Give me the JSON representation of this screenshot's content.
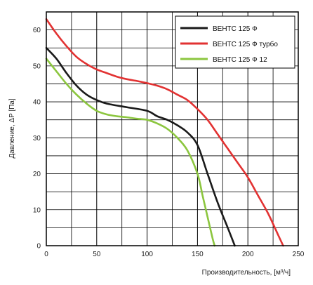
{
  "chart_data": {
    "type": "line",
    "xlabel": "Производительность, [м³/ч]",
    "ylabel": "Давление, ΔP [Па]",
    "xlim": [
      0,
      250
    ],
    "ylim": [
      0,
      65
    ],
    "x_ticks": [
      "0",
      "50",
      "100",
      "150",
      "200",
      "250"
    ],
    "y_ticks": [
      "0",
      "10",
      "20",
      "30",
      "40",
      "50",
      "60"
    ],
    "grid": true,
    "legend_position": "top-right",
    "series": [
      {
        "name": "ВЕНТС 125 Ф",
        "color": "#1a1a1a",
        "x": [
          0,
          10,
          20,
          30,
          40,
          50,
          60,
          80,
          100,
          110,
          120,
          130,
          140,
          150,
          160,
          170,
          180,
          187
        ],
        "y": [
          55,
          52,
          48,
          44.5,
          42,
          40.5,
          39.5,
          38.5,
          37.5,
          36,
          35,
          33.5,
          31.5,
          28,
          20,
          12,
          5,
          0
        ]
      },
      {
        "name": "ВЕНТС 125 Ф турбо",
        "color": "#e23232",
        "x": [
          0,
          10,
          20,
          30,
          40,
          50,
          60,
          70,
          80,
          90,
          100,
          110,
          120,
          130,
          140,
          150,
          160,
          170,
          180,
          190,
          200,
          210,
          220,
          230,
          235
        ],
        "y": [
          63,
          59,
          55.5,
          52.5,
          50.5,
          49,
          48,
          47,
          46.3,
          45.8,
          45.2,
          44.5,
          43.5,
          42,
          40.5,
          38,
          35,
          31,
          27,
          23,
          19,
          14,
          9,
          3,
          0
        ]
      },
      {
        "name": "ВЕНТС 125 Ф 12",
        "color": "#8cc63f",
        "x": [
          0,
          10,
          20,
          30,
          40,
          50,
          60,
          70,
          80,
          90,
          100,
          110,
          120,
          130,
          140,
          150,
          155,
          160,
          165,
          167
        ],
        "y": [
          52,
          48.5,
          45,
          42,
          39.5,
          37.5,
          36.5,
          36,
          35.7,
          35.3,
          35,
          34,
          32.5,
          30,
          26.5,
          20,
          14,
          8,
          2,
          0
        ]
      }
    ]
  }
}
